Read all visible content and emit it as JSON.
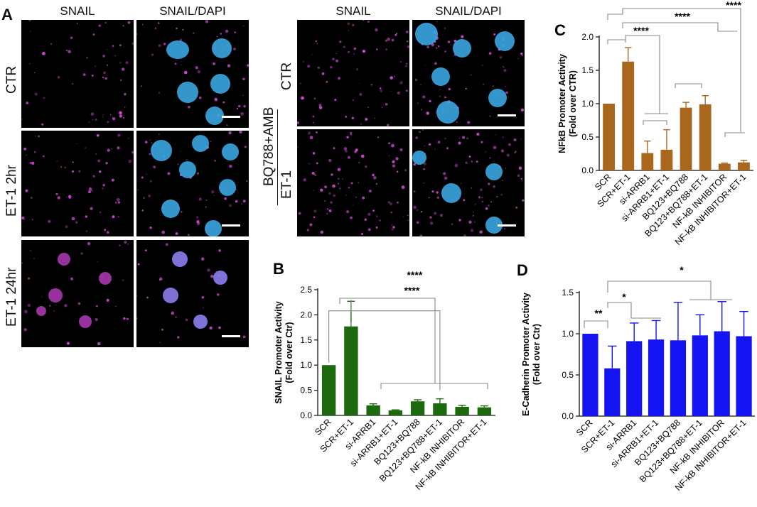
{
  "panel_A": {
    "letter": "A",
    "columns": [
      "SNAIL",
      "SNAIL/DAPI"
    ],
    "rows": [
      "CTR",
      "ET-1 2hr",
      "ET-1 24hr"
    ]
  },
  "panel_A2": {
    "columns": [
      "SNAIL",
      "SNAIL/DAPI"
    ],
    "treatment": "BQ788+AMB",
    "rows": [
      "CTR",
      "ET-1"
    ]
  },
  "chart_data": [
    {
      "id": "B",
      "letter": "B",
      "type": "bar",
      "ylabel": [
        "SNAIL Promoter Activity",
        "(Fold over Ctr)"
      ],
      "ylim": [
        0,
        2.5
      ],
      "yticks": [
        "0.0",
        "0.5",
        "1.0",
        "1.5",
        "2.0",
        "2.5"
      ],
      "color": "#1d6a0e",
      "categories": [
        "SCR",
        "SCR+ET-1",
        "si-ARRB1",
        "si-ARRB1+ET-1",
        "BQ123+BQ788",
        "BQ123+BQ788+ET-1",
        "NF-kB INHIBITOR",
        "NF-kB INHIBITOR+ET-1"
      ],
      "values": [
        1.0,
        1.77,
        0.2,
        0.1,
        0.28,
        0.24,
        0.17,
        0.16
      ],
      "errors": [
        0,
        0.5,
        0.03,
        0.01,
        0.03,
        0.09,
        0.03,
        0.03
      ],
      "significance": [
        "****",
        "****"
      ]
    },
    {
      "id": "C",
      "letter": "C",
      "type": "bar",
      "ylabel": [
        "NFkB Promoter Activity",
        "(Fold over CTR)"
      ],
      "ylim": [
        0,
        2.0
      ],
      "yticks": [
        "0.0",
        "0.5",
        "1.0",
        "1.5",
        "2.0"
      ],
      "color": "#a8671d",
      "categories": [
        "SCR",
        "SCR+ET-1",
        "si-ARRB1",
        "si-ARRB1+ET-1",
        "BQ123+BQ788",
        "BQ123+BQ788+ET-1",
        "NF-kB INHIBITOR",
        "NF-kB INHIBITOR+ET-1"
      ],
      "values": [
        1.0,
        1.63,
        0.26,
        0.31,
        0.94,
        0.99,
        0.1,
        0.12
      ],
      "errors": [
        0,
        0.21,
        0.18,
        0.3,
        0.08,
        0.13,
        0.01,
        0.03
      ],
      "significance": [
        "****",
        "****",
        "****"
      ]
    },
    {
      "id": "D",
      "letter": "D",
      "type": "bar",
      "ylabel": [
        "E-Cadherin Promoter Activity",
        "(Fold over Ctr)"
      ],
      "ylim": [
        0,
        1.5
      ],
      "yticks": [
        "0.0",
        "0.5",
        "1.0",
        "1.5"
      ],
      "color": "#1414f2",
      "categories": [
        "SCR",
        "SCR+ET-1",
        "si-ARRB1",
        "si-ARRB1+ET-1",
        "BQ123+BQ788",
        "BQ123+BQ788+ET-1",
        "NF-kB INHIBITOR",
        "NF-kB INHIBITOR+ET-1"
      ],
      "values": [
        1.0,
        0.58,
        0.91,
        0.93,
        0.92,
        0.98,
        1.03,
        0.97
      ],
      "errors": [
        0,
        0.27,
        0.22,
        0.23,
        0.46,
        0.25,
        0.36,
        0.3
      ],
      "significance": [
        "**",
        "*",
        "*"
      ]
    }
  ]
}
